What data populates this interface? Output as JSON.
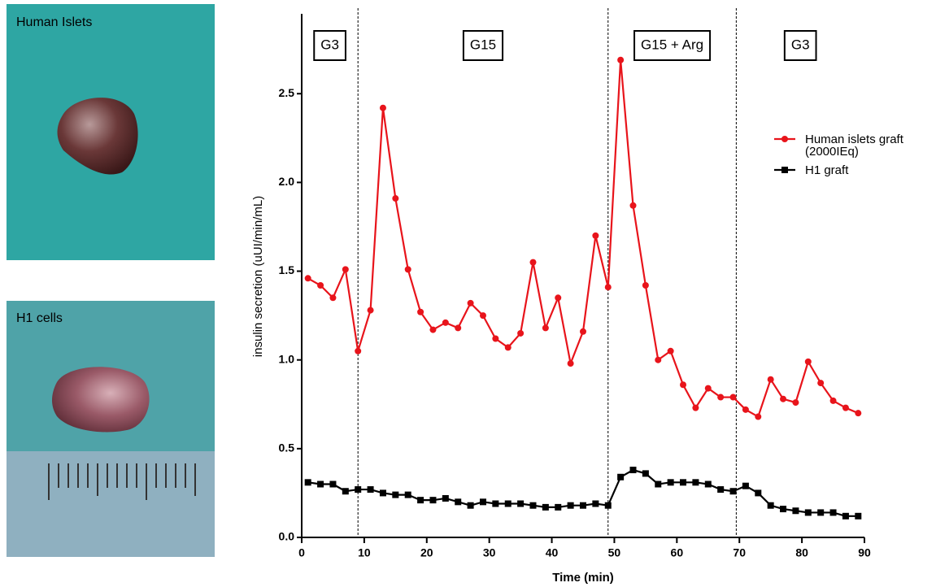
{
  "panels": {
    "top_label": "Human Islets",
    "bottom_label": "H1 cells"
  },
  "chart_data": {
    "type": "line",
    "x_label": "Time (min)",
    "y_label": "insulin secretion (uUI/min/mL)",
    "xlim": [
      0,
      90
    ],
    "xticks": [
      0,
      10,
      20,
      30,
      40,
      50,
      60,
      70,
      80,
      90
    ],
    "ylim": [
      0,
      2.95
    ],
    "yticks": [
      {
        "value": 0,
        "label": "0.0"
      },
      0.5,
      {
        "value": 1,
        "label": "1.0"
      },
      1.5,
      {
        "value": 2,
        "label": "2.0"
      },
      2.5
    ],
    "legend": "right",
    "dividers": [
      9,
      49,
      69.5
    ],
    "phases": [
      "G3",
      "G15",
      "G15 + Arg",
      "G3"
    ],
    "x": [
      1,
      3,
      5,
      7,
      9,
      11,
      13,
      15,
      17,
      19,
      21,
      23,
      25,
      27,
      29,
      31,
      33,
      35,
      37,
      39,
      41,
      43,
      45,
      47,
      49,
      51,
      53,
      55,
      57,
      59,
      61,
      63,
      65,
      67,
      69,
      71,
      73,
      75,
      77,
      79,
      81,
      83,
      85,
      87,
      89
    ],
    "series": [
      {
        "name": "Human islets graft (2000IEq)",
        "color": "#e8141b",
        "marker": "circle",
        "values": [
          1.46,
          1.42,
          1.35,
          1.51,
          1.05,
          1.28,
          2.42,
          1.91,
          1.51,
          1.27,
          1.17,
          1.21,
          1.18,
          1.32,
          1.25,
          1.12,
          1.07,
          1.15,
          1.55,
          1.18,
          1.35,
          0.98,
          1.16,
          1.7,
          1.41,
          2.69,
          1.87,
          1.42,
          1.0,
          1.05,
          0.86,
          0.73,
          0.84,
          0.79,
          0.79,
          0.72,
          0.68,
          0.89,
          0.78,
          0.76,
          0.99,
          0.87,
          0.77,
          0.73,
          0.7
        ]
      },
      {
        "name": "H1 graft",
        "color": "#000000",
        "marker": "square",
        "values": [
          0.31,
          0.3,
          0.3,
          0.26,
          0.27,
          0.27,
          0.25,
          0.24,
          0.24,
          0.21,
          0.21,
          0.22,
          0.2,
          0.18,
          0.2,
          0.19,
          0.19,
          0.19,
          0.18,
          0.17,
          0.17,
          0.18,
          0.18,
          0.19,
          0.18,
          0.34,
          0.38,
          0.36,
          0.3,
          0.31,
          0.31,
          0.31,
          0.3,
          0.27,
          0.26,
          0.29,
          0.25,
          0.18,
          0.16,
          0.15,
          0.14,
          0.14,
          0.14,
          0.12,
          0.12
        ]
      }
    ]
  }
}
